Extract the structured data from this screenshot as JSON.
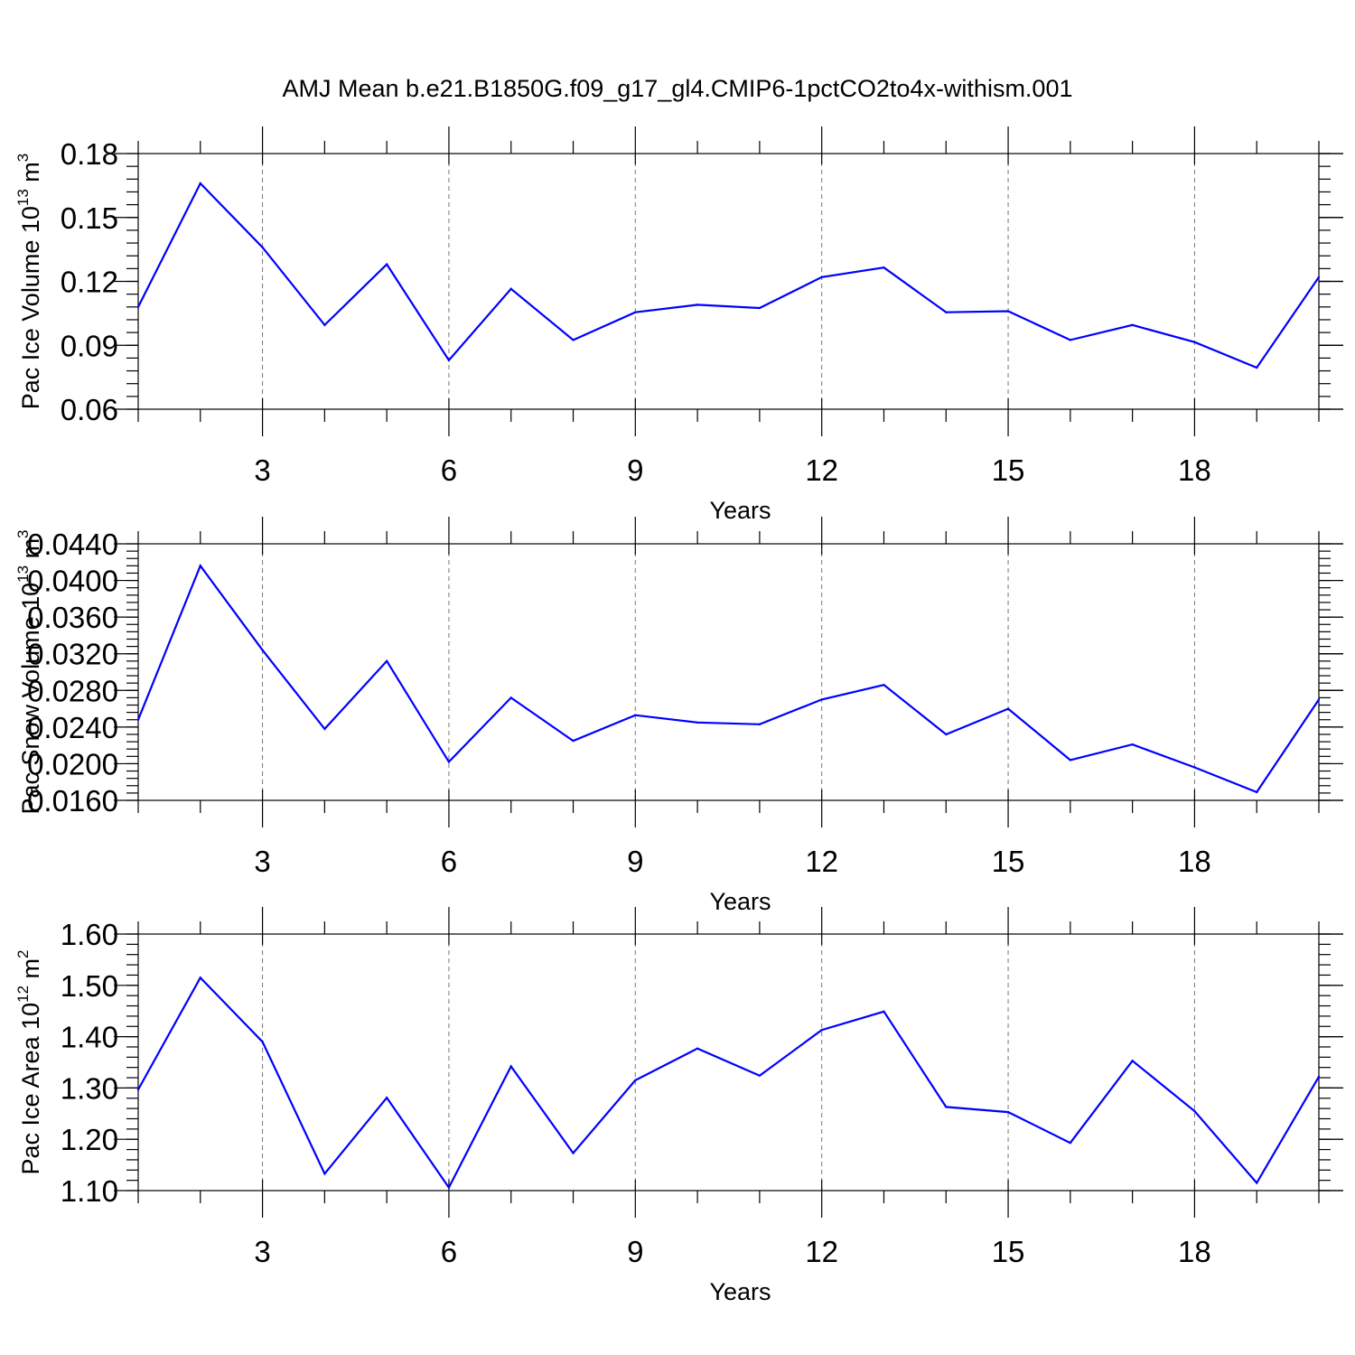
{
  "title": "AMJ Mean b.e21.B1850G.f09_g17_gl4.CMIP6-1pctCO2to4x-withism.001",
  "series_color": "#0000ff",
  "chart_data": [
    {
      "type": "line",
      "ylabel": "Pac Ice Volume 10",
      "ylabel_exp": "13",
      "ylabel_unit": " m",
      "ylabel_unit_exp": "3",
      "xlabel": "Years",
      "xlim": [
        1,
        20
      ],
      "ylim": [
        0.06,
        0.18
      ],
      "yticks": [
        0.06,
        0.09,
        0.12,
        0.15,
        0.18
      ],
      "ytick_labels": [
        "0.06",
        "0.09",
        "0.12",
        "0.15",
        "0.18"
      ],
      "yminor_step": 0.006,
      "xticks": [
        3,
        6,
        9,
        12,
        15,
        18
      ],
      "xtick_labels": [
        "3",
        "6",
        "9",
        "12",
        "15",
        "18"
      ],
      "grid": "x-dashed",
      "x": [
        1,
        2,
        3,
        4,
        5,
        6,
        7,
        8,
        9,
        10,
        11,
        12,
        13,
        14,
        15,
        16,
        17,
        18,
        19,
        20
      ],
      "values": [
        0.108,
        0.166,
        0.136,
        0.0995,
        0.128,
        0.083,
        0.1165,
        0.0925,
        0.1055,
        0.109,
        0.1075,
        0.122,
        0.1265,
        0.1055,
        0.106,
        0.0925,
        0.0995,
        0.0915,
        0.0795,
        0.122
      ]
    },
    {
      "type": "line",
      "ylabel": "Pac Snow Volume 10",
      "ylabel_exp": "13",
      "ylabel_unit": " m",
      "ylabel_unit_exp": "3",
      "xlabel": "Years",
      "xlim": [
        1,
        20
      ],
      "ylim": [
        0.016,
        0.044
      ],
      "yticks": [
        0.016,
        0.02,
        0.024,
        0.028,
        0.032,
        0.036,
        0.04,
        0.044
      ],
      "ytick_labels": [
        "0.0160",
        "0.0200",
        "0.0240",
        "0.0280",
        "0.0320",
        "0.0360",
        "0.0400",
        "0.0440"
      ],
      "yminor_step": 0.0008,
      "xticks": [
        3,
        6,
        9,
        12,
        15,
        18
      ],
      "xtick_labels": [
        "3",
        "6",
        "9",
        "12",
        "15",
        "18"
      ],
      "grid": "x-dashed",
      "x": [
        1,
        2,
        3,
        4,
        5,
        6,
        7,
        8,
        9,
        10,
        11,
        12,
        13,
        14,
        15,
        16,
        17,
        18,
        19,
        20
      ],
      "values": [
        0.0248,
        0.0416,
        0.0324,
        0.0238,
        0.0312,
        0.0202,
        0.0272,
        0.0225,
        0.0253,
        0.0245,
        0.0243,
        0.027,
        0.0286,
        0.0232,
        0.026,
        0.0204,
        0.0221,
        0.0196,
        0.0169,
        0.027
      ]
    },
    {
      "type": "line",
      "ylabel": "Pac Ice Area 10",
      "ylabel_exp": "12",
      "ylabel_unit": " m",
      "ylabel_unit_exp": "2",
      "xlabel": "Years",
      "xlim": [
        1,
        20
      ],
      "ylim": [
        1.1,
        1.6
      ],
      "yticks": [
        1.1,
        1.2,
        1.3,
        1.4,
        1.5,
        1.6
      ],
      "ytick_labels": [
        "1.10",
        "1.20",
        "1.30",
        "1.40",
        "1.50",
        "1.60"
      ],
      "yminor_step": 0.02,
      "xticks": [
        3,
        6,
        9,
        12,
        15,
        18
      ],
      "xtick_labels": [
        "3",
        "6",
        "9",
        "12",
        "15",
        "18"
      ],
      "grid": "x-dashed",
      "x": [
        1,
        2,
        3,
        4,
        5,
        6,
        7,
        8,
        9,
        10,
        11,
        12,
        13,
        14,
        15,
        16,
        17,
        18,
        19,
        20
      ],
      "values": [
        1.297,
        1.515,
        1.39,
        1.133,
        1.281,
        1.106,
        1.342,
        1.173,
        1.315,
        1.377,
        1.324,
        1.413,
        1.449,
        1.263,
        1.253,
        1.193,
        1.353,
        1.255,
        1.115,
        1.322
      ]
    }
  ]
}
